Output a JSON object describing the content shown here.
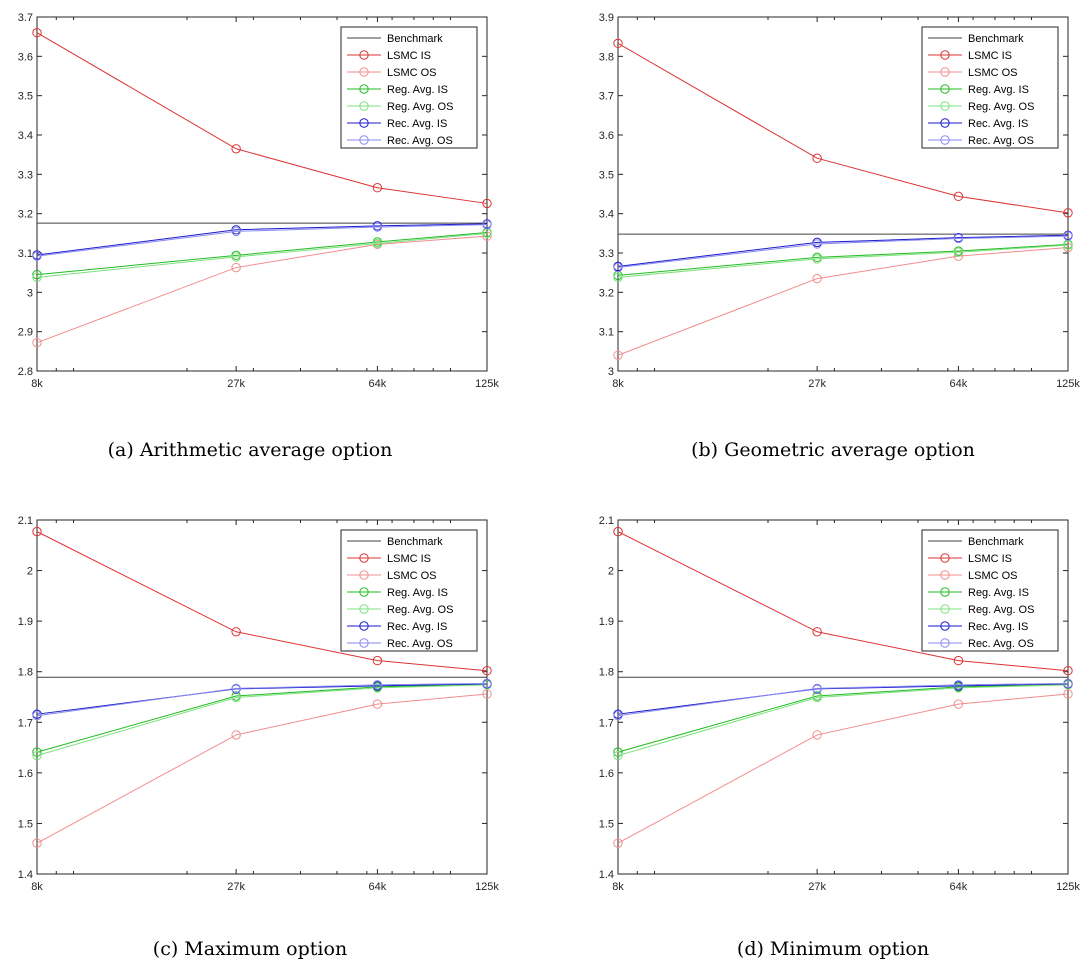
{
  "chart_data": [
    {
      "type": "line",
      "caption": "(a) Arithmetic average option",
      "x_scale": "log",
      "xlim": [
        8,
        125
      ],
      "x_tick_values": [
        8,
        27,
        64,
        125
      ],
      "x_tick_labels": [
        "8k",
        "27k",
        "64k",
        "125k"
      ],
      "ylim": [
        2.8,
        3.7
      ],
      "y_ticks": [
        2.8,
        2.9,
        3,
        3.1,
        3.2,
        3.3,
        3.4,
        3.5,
        3.6,
        3.7
      ],
      "y_tick_labels": [
        "2.8",
        "2.9",
        "3",
        "3.1",
        "3.2",
        "3.3",
        "3.4",
        "3.5",
        "3.6",
        "3.7"
      ],
      "grid": false,
      "legend_position": "top-right",
      "x": [
        8,
        27,
        64,
        125
      ],
      "series": [
        {
          "name": "Benchmark",
          "values": [
            3.176,
            3.176,
            3.176,
            3.176
          ],
          "color": "#404040",
          "marker": false
        },
        {
          "name": "LSMC IS",
          "values": [
            3.66,
            3.365,
            3.266,
            3.226
          ],
          "color": "#dd3333",
          "marker": true
        },
        {
          "name": "LSMC OS",
          "values": [
            2.872,
            3.063,
            3.122,
            3.143
          ],
          "color": "#f28d8d",
          "marker": true
        },
        {
          "name": "Reg. Avg. IS",
          "values": [
            3.045,
            3.094,
            3.128,
            3.152
          ],
          "color": "#22bb22",
          "marker": true
        },
        {
          "name": "Reg. Avg. OS",
          "values": [
            3.038,
            3.09,
            3.124,
            3.15
          ],
          "color": "#7fe07f",
          "marker": true
        },
        {
          "name": "Rec. Avg. IS",
          "values": [
            3.095,
            3.159,
            3.169,
            3.174
          ],
          "color": "#1a1acc",
          "marker": true
        },
        {
          "name": "Rec. Avg. OS",
          "values": [
            3.092,
            3.155,
            3.166,
            3.172
          ],
          "color": "#8a8af0",
          "marker": true
        }
      ]
    },
    {
      "type": "line",
      "caption": "(b) Geometric average option",
      "x_scale": "log",
      "xlim": [
        8,
        125
      ],
      "x_tick_values": [
        8,
        27,
        64,
        125
      ],
      "x_tick_labels": [
        "8k",
        "27k",
        "64k",
        "125k"
      ],
      "ylim": [
        3.0,
        3.9
      ],
      "y_ticks": [
        3,
        3.1,
        3.2,
        3.3,
        3.4,
        3.5,
        3.6,
        3.7,
        3.8,
        3.9
      ],
      "y_tick_labels": [
        "3",
        "3.1",
        "3.2",
        "3.3",
        "3.4",
        "3.5",
        "3.6",
        "3.7",
        "3.8",
        "3.9"
      ],
      "grid": false,
      "legend_position": "top-right",
      "x": [
        8,
        27,
        64,
        125
      ],
      "series": [
        {
          "name": "Benchmark",
          "values": [
            3.348,
            3.348,
            3.348,
            3.348
          ],
          "color": "#404040",
          "marker": false
        },
        {
          "name": "LSMC IS",
          "values": [
            3.833,
            3.541,
            3.444,
            3.402
          ],
          "color": "#dd3333",
          "marker": true
        },
        {
          "name": "LSMC OS",
          "values": [
            3.04,
            3.235,
            3.292,
            3.314
          ],
          "color": "#f28d8d",
          "marker": true
        },
        {
          "name": "Reg. Avg. IS",
          "values": [
            3.243,
            3.289,
            3.305,
            3.322
          ],
          "color": "#22bb22",
          "marker": true
        },
        {
          "name": "Reg. Avg. OS",
          "values": [
            3.238,
            3.285,
            3.302,
            3.32
          ],
          "color": "#7fe07f",
          "marker": true
        },
        {
          "name": "Rec. Avg. IS",
          "values": [
            3.266,
            3.327,
            3.339,
            3.345
          ],
          "color": "#1a1acc",
          "marker": true
        },
        {
          "name": "Rec. Avg. OS",
          "values": [
            3.263,
            3.323,
            3.337,
            3.343
          ],
          "color": "#8a8af0",
          "marker": true
        }
      ]
    },
    {
      "type": "line",
      "caption": "(c) Maximum option",
      "x_scale": "log",
      "xlim": [
        8,
        125
      ],
      "x_tick_values": [
        8,
        27,
        64,
        125
      ],
      "x_tick_labels": [
        "8k",
        "27k",
        "64k",
        "125k"
      ],
      "ylim": [
        1.4,
        2.1
      ],
      "y_ticks": [
        1.4,
        1.5,
        1.6,
        1.7,
        1.8,
        1.9,
        2,
        2.1
      ],
      "y_tick_labels": [
        "1.4",
        "1.5",
        "1.6",
        "1.7",
        "1.8",
        "1.9",
        "2",
        "2.1"
      ],
      "grid": false,
      "legend_position": "top-right",
      "x": [
        8,
        27,
        64,
        125
      ],
      "series": [
        {
          "name": "Benchmark",
          "values": [
            1.789,
            1.789,
            1.789,
            1.789
          ],
          "color": "#404040",
          "marker": false
        },
        {
          "name": "LSMC IS",
          "values": [
            2.077,
            1.879,
            1.822,
            1.802
          ],
          "color": "#dd3333",
          "marker": true
        },
        {
          "name": "LSMC OS",
          "values": [
            1.461,
            1.675,
            1.736,
            1.756
          ],
          "color": "#f28d8d",
          "marker": true
        },
        {
          "name": "Reg. Avg. IS",
          "values": [
            1.641,
            1.752,
            1.77,
            1.775
          ],
          "color": "#22bb22",
          "marker": true
        },
        {
          "name": "Reg. Avg. OS",
          "values": [
            1.634,
            1.749,
            1.768,
            1.774
          ],
          "color": "#7fe07f",
          "marker": true
        },
        {
          "name": "Rec. Avg. IS",
          "values": [
            1.716,
            1.766,
            1.772,
            1.776
          ],
          "color": "#1a1acc",
          "marker": true
        },
        {
          "name": "Rec. Avg. OS",
          "values": [
            1.713,
            1.767,
            1.774,
            1.777
          ],
          "color": "#8a8af0",
          "marker": true
        }
      ]
    },
    {
      "type": "line",
      "caption": "(d) Minimum option",
      "x_scale": "log",
      "xlim": [
        8,
        125
      ],
      "x_tick_values": [
        8,
        27,
        64,
        125
      ],
      "x_tick_labels": [
        "8k",
        "27k",
        "64k",
        "125k"
      ],
      "ylim": [
        1.4,
        2.1
      ],
      "y_ticks": [
        1.4,
        1.5,
        1.6,
        1.7,
        1.8,
        1.9,
        2,
        2.1
      ],
      "y_tick_labels": [
        "1.4",
        "1.5",
        "1.6",
        "1.7",
        "1.8",
        "1.9",
        "2",
        "2.1"
      ],
      "grid": false,
      "legend_position": "top-right",
      "x": [
        8,
        27,
        64,
        125
      ],
      "series": [
        {
          "name": "Benchmark",
          "values": [
            1.789,
            1.789,
            1.789,
            1.789
          ],
          "color": "#404040",
          "marker": false
        },
        {
          "name": "LSMC IS",
          "values": [
            2.077,
            1.879,
            1.822,
            1.802
          ],
          "color": "#dd3333",
          "marker": true
        },
        {
          "name": "LSMC OS",
          "values": [
            1.461,
            1.675,
            1.736,
            1.756
          ],
          "color": "#f28d8d",
          "marker": true
        },
        {
          "name": "Reg. Avg. IS",
          "values": [
            1.641,
            1.752,
            1.77,
            1.775
          ],
          "color": "#22bb22",
          "marker": true
        },
        {
          "name": "Reg. Avg. OS",
          "values": [
            1.634,
            1.749,
            1.768,
            1.774
          ],
          "color": "#7fe07f",
          "marker": true
        },
        {
          "name": "Rec. Avg. IS",
          "values": [
            1.716,
            1.766,
            1.772,
            1.776
          ],
          "color": "#1a1acc",
          "marker": true
        },
        {
          "name": "Rec. Avg. OS",
          "values": [
            1.713,
            1.767,
            1.774,
            1.777
          ],
          "color": "#8a8af0",
          "marker": true
        }
      ]
    }
  ]
}
